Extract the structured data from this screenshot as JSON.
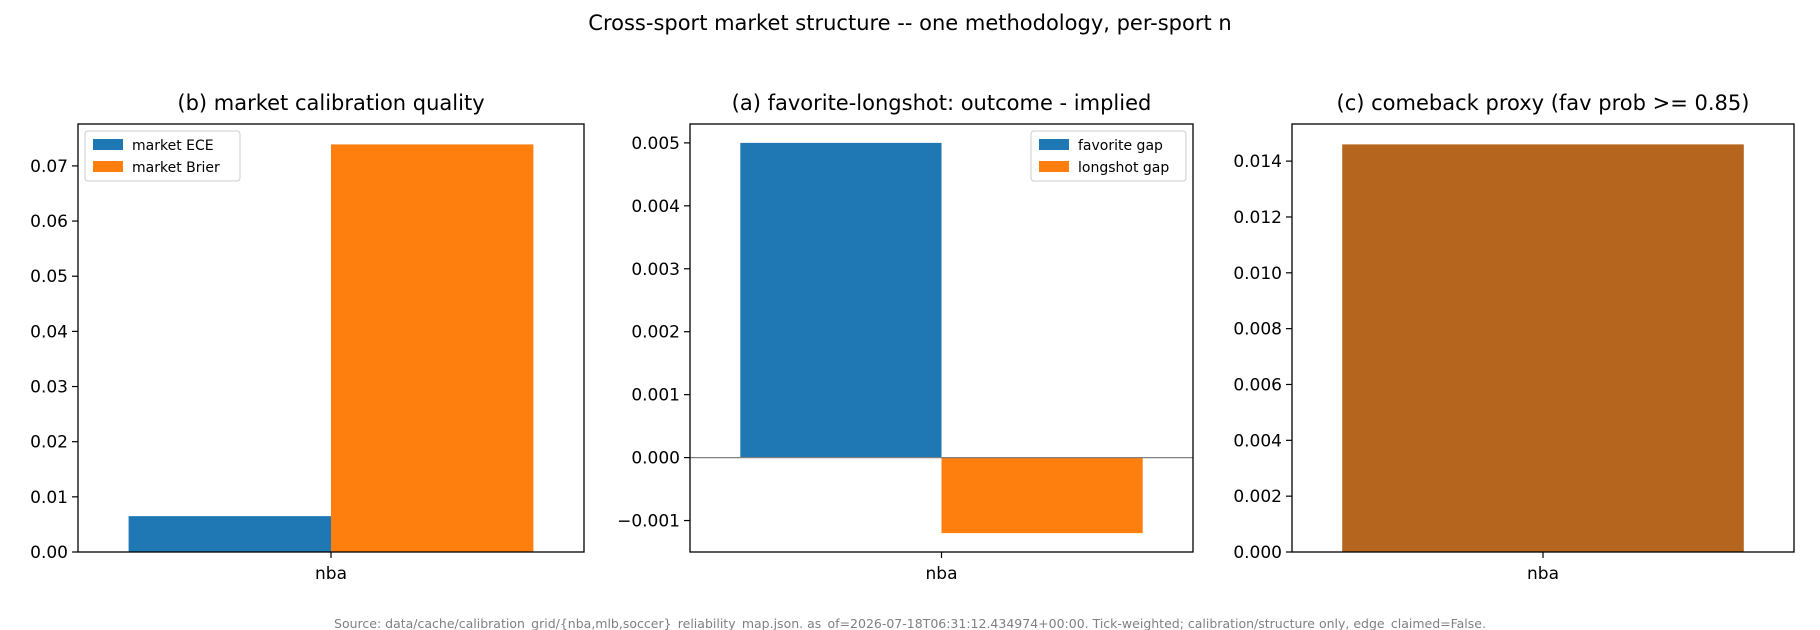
{
  "figure": {
    "suptitle": "Cross-sport market structure -- one methodology, per-sport n",
    "footer": "Source: data/cache/calibration_grid/{nba,mlb,soccer}_reliability_map.json. as_of=2026-07-18T06:31:12.434974+00:00. Tick-weighted; calibration/structure only, edge_claimed=False."
  },
  "chart_data": [
    {
      "type": "bar",
      "title": "(b) market calibration quality",
      "categories": [
        "nba"
      ],
      "series": [
        {
          "name": "market ECE",
          "values": [
            0.0065
          ],
          "color": "#1f77b4"
        },
        {
          "name": "market Brier",
          "values": [
            0.0739
          ],
          "color": "#ff7f0e"
        }
      ],
      "ylim": [
        0,
        0.0776
      ],
      "yticks": [
        0.0,
        0.01,
        0.02,
        0.03,
        0.04,
        0.05,
        0.06,
        0.07
      ],
      "ytick_labels": [
        "0.00",
        "0.01",
        "0.02",
        "0.03",
        "0.04",
        "0.05",
        "0.06",
        "0.07"
      ],
      "xlabel": "",
      "ylabel": "",
      "grid": false,
      "legend": "upper-left"
    },
    {
      "type": "bar",
      "title": "(a) favorite-longshot: outcome - implied",
      "categories": [
        "nba"
      ],
      "series": [
        {
          "name": "favorite gap",
          "values": [
            0.005
          ],
          "color": "#1f77b4"
        },
        {
          "name": "longshot gap",
          "values": [
            -0.0012
          ],
          "color": "#ff7f0e"
        }
      ],
      "ylim": [
        -0.0015,
        0.0053
      ],
      "yticks": [
        -0.001,
        0.0,
        0.001,
        0.002,
        0.003,
        0.004,
        0.005
      ],
      "ytick_labels": [
        "−0.001",
        "0.000",
        "0.001",
        "0.002",
        "0.003",
        "0.004",
        "0.005"
      ],
      "zero_line": true,
      "xlabel": "",
      "ylabel": "",
      "grid": false,
      "legend": "upper-right"
    },
    {
      "type": "bar",
      "title": "(c) comeback proxy (fav prob >= 0.85)",
      "categories": [
        "nba"
      ],
      "series": [
        {
          "values": [
            0.0146
          ],
          "color": "#b5651d"
        }
      ],
      "ylim": [
        0,
        0.01533
      ],
      "yticks": [
        0.0,
        0.002,
        0.004,
        0.006,
        0.008,
        0.01,
        0.012,
        0.014
      ],
      "ytick_labels": [
        "0.000",
        "0.002",
        "0.004",
        "0.006",
        "0.008",
        "0.010",
        "0.012",
        "0.014"
      ],
      "xlabel": "",
      "ylabel": "",
      "grid": false
    }
  ]
}
